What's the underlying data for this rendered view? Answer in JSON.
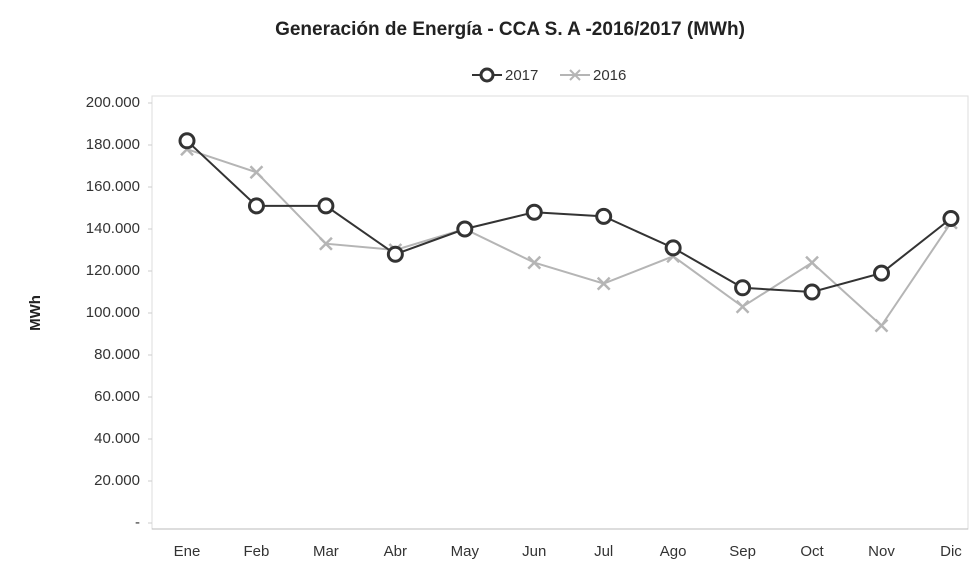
{
  "chart_data": {
    "type": "line",
    "title": "Generación de Energía - CCA S. A -2016/2017 (MWh)",
    "y_label": "MWh",
    "categories": [
      "Ene",
      "Feb",
      "Mar",
      "Abr",
      "May",
      "Jun",
      "Jul",
      "Ago",
      "Sep",
      "Oct",
      "Nov",
      "Dic"
    ],
    "series": [
      {
        "name": "2017",
        "color": "#333333",
        "marker": "circle",
        "values": [
          182000,
          151000,
          151000,
          128000,
          140000,
          148000,
          146000,
          131000,
          112000,
          110000,
          119000,
          145000
        ]
      },
      {
        "name": "2016",
        "color": "#b5b5b5",
        "marker": "x",
        "values": [
          178000,
          167000,
          133000,
          130000,
          140000,
          124000,
          114000,
          127000,
          103000,
          124000,
          94000,
          143000
        ]
      }
    ],
    "ylim": [
      0,
      200000
    ],
    "yticks": [
      {
        "value": 0,
        "label": "-"
      },
      {
        "value": 20000,
        "label": "20.000"
      },
      {
        "value": 40000,
        "label": "40.000"
      },
      {
        "value": 60000,
        "label": "60.000"
      },
      {
        "value": 80000,
        "label": "80.000"
      },
      {
        "value": 100000,
        "label": "100.000"
      },
      {
        "value": 120000,
        "label": "120.000"
      },
      {
        "value": 140000,
        "label": "140.000"
      },
      {
        "value": 160000,
        "label": "160.000"
      },
      {
        "value": 180000,
        "label": "180.000"
      },
      {
        "value": 200000,
        "label": "200.000"
      }
    ],
    "grid": false,
    "legend": "top"
  }
}
